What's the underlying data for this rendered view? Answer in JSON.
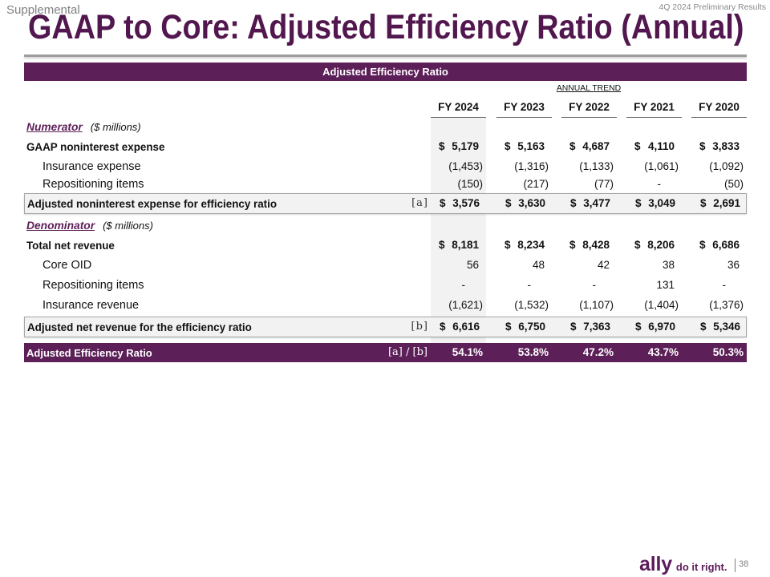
{
  "header": {
    "section_label": "Supplemental",
    "period_label": "4Q 2024 Preliminary Results",
    "title": "GAAP to Core: Adjusted Efficiency Ratio (Annual)"
  },
  "table": {
    "banner": "Adjusted Efficiency Ratio",
    "trend_label": "ANNUAL TREND",
    "columns": [
      "FY 2024",
      "FY 2023",
      "FY 2022",
      "FY 2021",
      "FY 2020"
    ],
    "rows": [
      {
        "kind": "section",
        "label": "Numerator",
        "note": "($ millions)"
      },
      {
        "kind": "bold",
        "label": "GAAP noninterest expense",
        "values": [
          "$ 5,179",
          "$ 5,163",
          "$ 4,687",
          "$ 4,110",
          "$ 3,833"
        ]
      },
      {
        "kind": "indent",
        "label": "Insurance expense",
        "values": [
          "(1,453)",
          "(1,316)",
          "(1,133)",
          "(1,061)",
          "(1,092)"
        ]
      },
      {
        "kind": "indent",
        "label": "Repositioning items",
        "values": [
          "(150)",
          "(217)",
          "(77)",
          "-",
          "(50)"
        ]
      },
      {
        "kind": "total",
        "label": "Adjusted noninterest expense for efficiency ratio",
        "ref": "[a]",
        "values": [
          "$ 3,576",
          "$ 3,630",
          "$ 3,477",
          "$ 3,049",
          "$ 2,691"
        ]
      },
      {
        "kind": "section",
        "label": "Denominator",
        "note": "($ millions)"
      },
      {
        "kind": "bold",
        "label": "Total net revenue",
        "values": [
          "$ 8,181",
          "$ 8,234",
          "$ 8,428",
          "$ 8,206",
          "$ 6,686"
        ]
      },
      {
        "kind": "indent",
        "label": "Core OID",
        "values": [
          "56",
          "48",
          "42",
          "38",
          "36"
        ]
      },
      {
        "kind": "indent",
        "label": "Repositioning items",
        "values": [
          "-",
          "-",
          "-",
          "131",
          "-"
        ]
      },
      {
        "kind": "indent",
        "label": "Insurance revenue",
        "values": [
          "(1,621)",
          "(1,532)",
          "(1,107)",
          "(1,404)",
          "(1,376)"
        ]
      },
      {
        "kind": "total",
        "label": "Adjusted net revenue for the efficiency ratio",
        "ref": "[b]",
        "values": [
          "$ 6,616",
          "$ 6,750",
          "$ 7,363",
          "$ 6,970",
          "$ 5,346"
        ]
      },
      {
        "kind": "ratio",
        "label": "Adjusted Efficiency Ratio",
        "ref": "[a] / [b]",
        "values": [
          "54.1%",
          "53.8%",
          "47.2%",
          "43.7%",
          "50.3%"
        ]
      }
    ]
  },
  "footer": {
    "logo": "ally",
    "tagline": "do it right.",
    "page_number": "38"
  },
  "colors": {
    "title": "#52174e",
    "accent_purple": "#5c1f58",
    "logo": "#5e1a5b",
    "shade": "#f2f2f2"
  }
}
